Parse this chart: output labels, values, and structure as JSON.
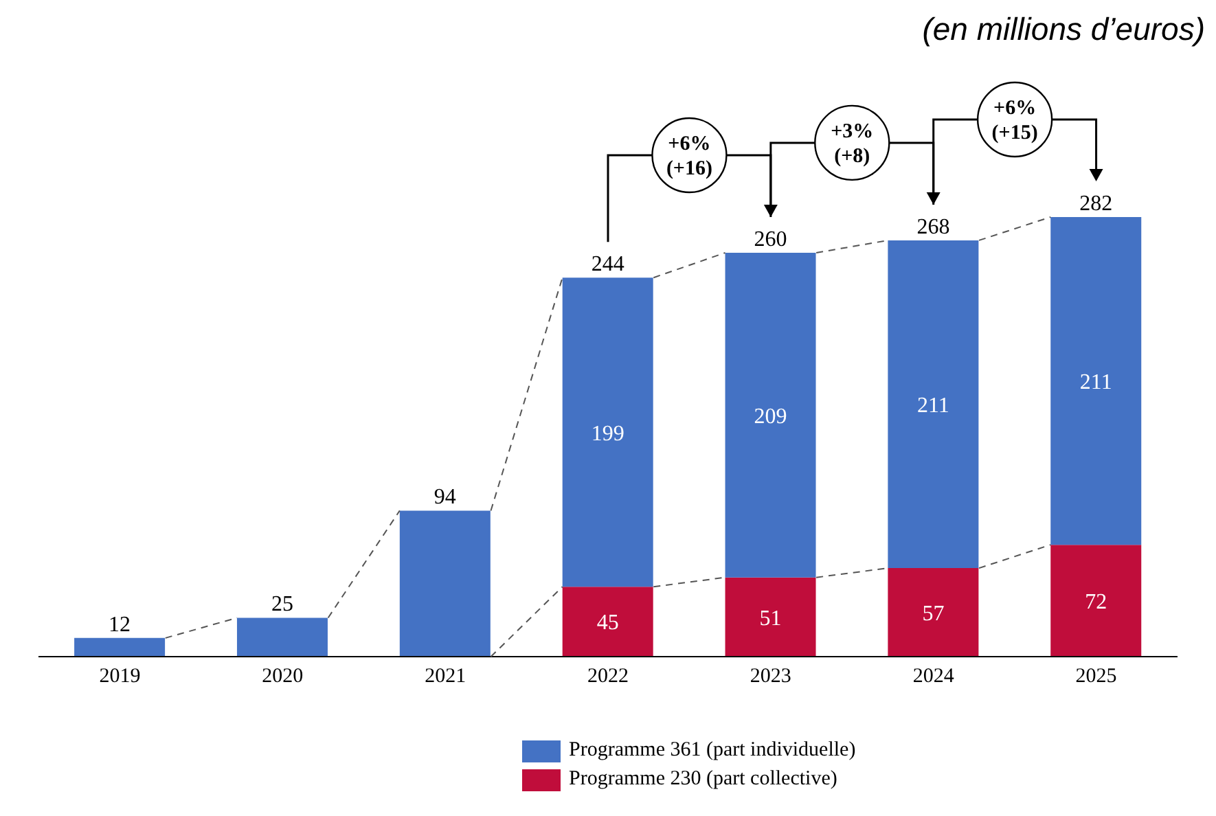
{
  "chart_data": {
    "type": "bar",
    "subtitle": "(en millions d’euros)",
    "categories": [
      "2019",
      "2020",
      "2021",
      "2022",
      "2023",
      "2024",
      "2025"
    ],
    "stacked": true,
    "legend": "bottom",
    "tick_labels": "x",
    "grid": false,
    "series": [
      {
        "name": "Programme 230 (part collective)",
        "color": "#c00d3b",
        "values": [
          null,
          null,
          0,
          45,
          51,
          57,
          72
        ],
        "value_labels": [
          null,
          null,
          null,
          "45",
          "51",
          "57",
          "72"
        ]
      },
      {
        "name": "Programme 361 (part individuelle)",
        "color": "#4472c4",
        "values": [
          12,
          25,
          94,
          199,
          209,
          211,
          211
        ],
        "value_labels": [
          null,
          null,
          null,
          "199",
          "209",
          "211",
          "211"
        ]
      }
    ],
    "totals": [
      "12",
      "25",
      "94",
      "244",
      "260",
      "268",
      "282"
    ],
    "annotations": [
      "+6% (+16)",
      "+3% (+8)",
      "+6% (+15)"
    ]
  }
}
